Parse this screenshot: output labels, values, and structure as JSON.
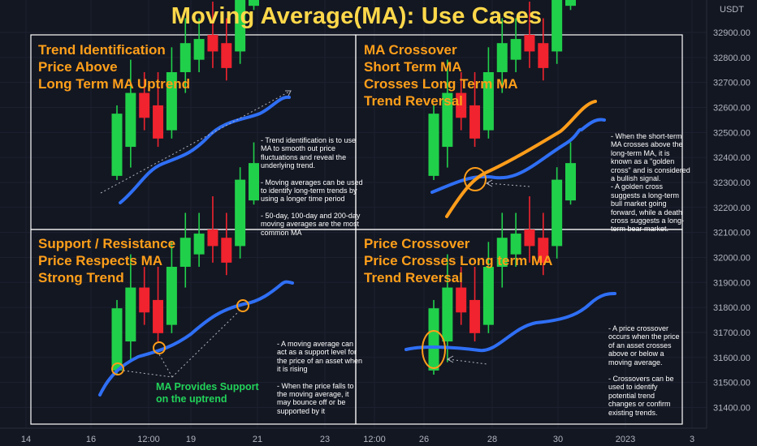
{
  "title": "Moving Average(MA): Use Cases",
  "axis_unit": "USDT",
  "chart_data": {
    "type": "candlestick",
    "y_ticks": [
      32900,
      32800,
      32700,
      32600,
      32500,
      32400,
      32300,
      32200,
      32100,
      32000,
      31900,
      31800,
      31700,
      31600,
      31500,
      31400
    ],
    "y_tick_labels": [
      "32900.00",
      "32800.00",
      "32700.00",
      "32600.00",
      "32500.00",
      "32400.00",
      "32300.00",
      "32200.00",
      "32100.00",
      "32000.00",
      "31900.00",
      "31800.00",
      "31700.00",
      "31600.00",
      "31500.00",
      "31400.00"
    ],
    "x_tick_labels": [
      "14",
      "16",
      "12:00",
      "19",
      "21",
      "23",
      "12:00",
      "26",
      "28",
      "30",
      "2023",
      "3"
    ],
    "colors": {
      "up": "#21d04a",
      "down": "#f0232e",
      "ma_blue": "#2f6ff5",
      "ma_orange": "#ff9d1a",
      "frame": "#ffffff",
      "title": "#ffd84a",
      "support_label": "#22d35a"
    },
    "candles": [
      {
        "o": 32310,
        "h": 32480,
        "l": 32300,
        "c": 32460
      },
      {
        "o": 32380,
        "h": 32590,
        "l": 32330,
        "c": 32510
      },
      {
        "o": 32510,
        "h": 32560,
        "l": 32420,
        "c": 32450
      },
      {
        "o": 32480,
        "h": 32560,
        "l": 32380,
        "c": 32400
      },
      {
        "o": 32420,
        "h": 32620,
        "l": 32400,
        "c": 32560
      },
      {
        "o": 32560,
        "h": 32690,
        "l": 32510,
        "c": 32630
      },
      {
        "o": 32590,
        "h": 32690,
        "l": 32560,
        "c": 32640
      },
      {
        "o": 32650,
        "h": 32730,
        "l": 32570,
        "c": 32610
      },
      {
        "o": 32630,
        "h": 32690,
        "l": 32540,
        "c": 32570
      },
      {
        "o": 32610,
        "h": 32800,
        "l": 32580,
        "c": 32770
      },
      {
        "o": 32720,
        "h": 32860,
        "l": 32710,
        "c": 32810
      }
    ]
  },
  "panels": [
    {
      "title": [
        "Trend Identification",
        "Price Above",
        "Long Term MA Uptrend"
      ],
      "notes": [
        "- Trend identification is to use",
        "MA to smooth out price",
        "fluctuations and reveal the",
        "underlying trend.",
        "",
        "- Moving averages can be used",
        "to identify long-term trends by",
        "using a longer time period",
        "",
        "- 50-day, 100-day and 200-day",
        "moving averages are the most",
        "common MA"
      ]
    },
    {
      "title": [
        "MA Crossover",
        "Short Term MA",
        "Crosses Long Term MA",
        "Trend Reversal"
      ],
      "notes": [
        "- When the short-term",
        "MA crosses above the",
        "long-term MA, it is",
        "known as a \"golden",
        "cross\" and is considered",
        "a bullish signal.",
        "- A golden cross",
        "suggests a long-term",
        "bull market going",
        "forward, while a death",
        "cross suggests a long-",
        "term bear market."
      ]
    },
    {
      "title": [
        "Support / Resistance",
        "Price Respects MA",
        "Strong Trend"
      ],
      "notes": [
        "- A moving average can",
        "act as a support level for",
        "the price of an asset when",
        "it is rising",
        "",
        "- When the price falls to",
        "the moving average, it",
        "may bounce off or be",
        "supported by it"
      ],
      "support_label": [
        "MA Provides Support",
        "on the uptrend"
      ]
    },
    {
      "title": [
        "Price Crossover",
        "Price Crosses Long term MA",
        "Trend Reversal"
      ],
      "notes": [
        "- A price crossover",
        "occurs when the price",
        "of an asset crosses",
        "above or below a",
        "moving average.",
        "",
        "- Crossovers can be",
        "used to identify",
        "potential trend",
        "changes or confirm",
        "existing trends."
      ]
    }
  ]
}
